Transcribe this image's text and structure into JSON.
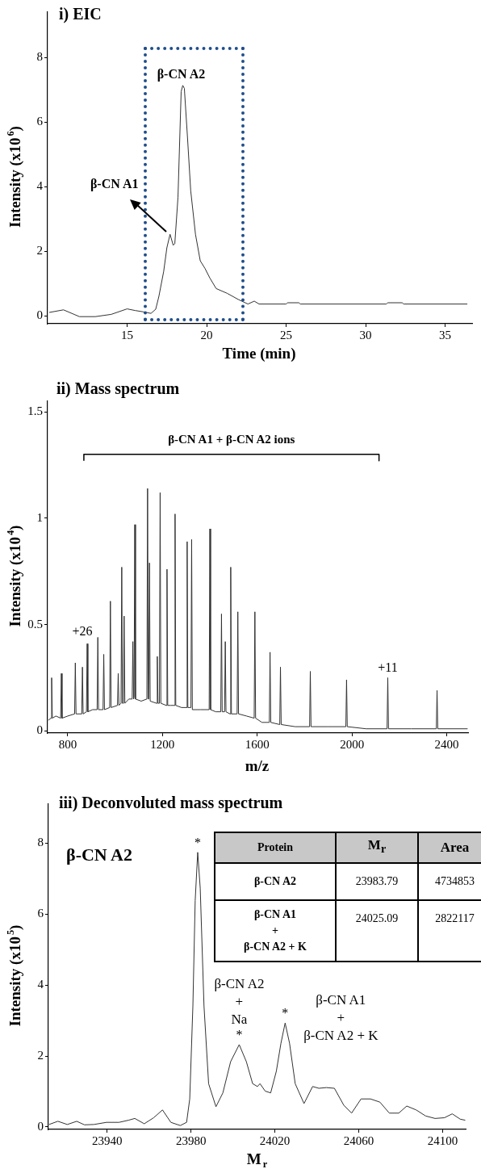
{
  "chart_data": [
    {
      "type": "line",
      "title": "i) EIC",
      "xlabel": "Time (min)",
      "ylabel": "Intensity (x10$^{6}$)",
      "xlim": [
        10,
        36.7
      ],
      "xticks": [
        15,
        20,
        25,
        30,
        35
      ],
      "ylim": [
        -0.25,
        9.4
      ],
      "yticks": [
        0,
        2,
        4,
        6,
        8
      ],
      "series": [
        {
          "color": "#333333",
          "x": [
            10.1,
            11,
            12,
            13,
            14,
            15,
            15.5,
            16,
            16.5,
            16.8,
            17,
            17.3,
            17.5,
            17.7,
            17.9,
            18,
            18.2,
            18.4,
            18.5,
            18.6,
            18.8,
            19,
            19.3,
            19.6,
            19.9,
            20.2,
            20.6,
            21.3,
            22,
            22.6,
            23,
            23.3,
            25,
            25.1,
            25.8,
            25.9,
            31.3,
            31.4,
            32.3,
            32.4,
            36.4
          ],
          "values": [
            0.1,
            0.18,
            -0.03,
            -0.03,
            0.04,
            0.21,
            0.16,
            0.12,
            0.07,
            0.2,
            0.6,
            1.37,
            2.1,
            2.52,
            2.18,
            2.23,
            3.67,
            6.94,
            7.13,
            7.04,
            5.5,
            3.87,
            2.52,
            1.7,
            1.46,
            1.17,
            0.84,
            0.69,
            0.5,
            0.36,
            0.45,
            0.36,
            0.36,
            0.4,
            0.4,
            0.36,
            0.36,
            0.4,
            0.4,
            0.36,
            0.36
          ]
        }
      ],
      "annotations": [
        {
          "text": "β-CN A2",
          "x": 18.5,
          "y": 7.13
        },
        {
          "text": "β-CN A1",
          "x": 17.7,
          "y": 2.52
        }
      ]
    },
    {
      "type": "line",
      "title": "ii) Mass spectrum",
      "xlabel": "m/z",
      "ylabel": "Intensity (x10$^{4}$)",
      "xlim": [
        715,
        2490
      ],
      "xticks": [
        800,
        1200,
        1600,
        2000,
        2400
      ],
      "ylim": [
        -0.01,
        1.55
      ],
      "yticks": [
        0,
        0.5,
        1,
        1.5
      ],
      "series": [
        {
          "color": "#333333",
          "x": [
            718,
            729,
            732,
            735,
            750,
            770,
            773,
            776,
            800,
            829,
            832,
            835,
            859,
            862,
            865,
            879,
            882,
            885,
            905,
            924,
            927,
            930,
            949,
            952,
            955,
            977,
            980,
            983,
            1010,
            1013,
            1016,
            1025,
            1028,
            1031,
            1035,
            1038,
            1041,
            1058,
            1072,
            1075,
            1078,
            1080,
            1083,
            1086,
            1110,
            1134,
            1137,
            1140,
            1142,
            1145,
            1148,
            1175,
            1178,
            1181,
            1187,
            1190,
            1193,
            1216,
            1219,
            1222,
            1235,
            1250,
            1253,
            1256,
            1280,
            1301,
            1304,
            1307,
            1320,
            1323,
            1326,
            1360,
            1397,
            1400,
            1403,
            1425,
            1446,
            1449,
            1452,
            1462,
            1465,
            1468,
            1485,
            1488,
            1491,
            1515,
            1518,
            1521,
            1555,
            1587,
            1590,
            1593,
            1620,
            1651,
            1654,
            1657,
            1695,
            1698,
            1701,
            1760,
            1821,
            1824,
            1827,
            1900,
            1974,
            1977,
            1980,
            2060,
            2148,
            2151,
            2154,
            2250,
            2356,
            2359,
            2362,
            2488
          ],
          "values": [
            0.05,
            0.06,
            0.25,
            0.06,
            0.07,
            0.06,
            0.27,
            0.06,
            0.07,
            0.08,
            0.32,
            0.08,
            0.08,
            0.3,
            0.08,
            0.09,
            0.41,
            0.09,
            0.1,
            0.1,
            0.44,
            0.1,
            0.1,
            0.36,
            0.1,
            0.11,
            0.61,
            0.11,
            0.12,
            0.27,
            0.12,
            0.13,
            0.77,
            0.13,
            0.13,
            0.54,
            0.13,
            0.15,
            0.15,
            0.42,
            0.15,
            0.16,
            0.97,
            0.15,
            0.14,
            0.15,
            1.14,
            0.15,
            0.15,
            0.79,
            0.14,
            0.13,
            0.35,
            0.13,
            0.13,
            1.12,
            0.13,
            0.12,
            0.76,
            0.12,
            0.12,
            0.12,
            1.02,
            0.12,
            0.11,
            0.11,
            0.89,
            0.11,
            0.11,
            0.9,
            0.1,
            0.1,
            0.1,
            0.95,
            0.1,
            0.09,
            0.09,
            0.55,
            0.09,
            0.09,
            0.42,
            0.09,
            0.08,
            0.77,
            0.08,
            0.08,
            0.56,
            0.08,
            0.07,
            0.06,
            0.56,
            0.06,
            0.04,
            0.04,
            0.37,
            0.04,
            0.03,
            0.3,
            0.03,
            0.02,
            0.02,
            0.28,
            0.02,
            0.02,
            0.02,
            0.24,
            0.02,
            0.01,
            0.01,
            0.25,
            0.01,
            0.01,
            0.01,
            0.19,
            0.01,
            0.01
          ]
        },
        {
          "type": "line",
          "color": "#000000",
          "x": [
            868,
            868,
            2114,
            2114
          ],
          "values": [
            1.27,
            1.3,
            1.3,
            1.27
          ]
        }
      ],
      "annotations": [
        {
          "text": "+26",
          "x": 882,
          "y": 0.41
        },
        {
          "text": "+11",
          "x": 2151,
          "y": 0.25
        },
        {
          "text": "β-CN A1 + β-CN A2 ions",
          "x": 1491,
          "y": 1.3
        }
      ]
    },
    {
      "type": "line",
      "title": "iii) Deconvoluted mass spectrum",
      "xlabel": "M$_{r}$",
      "ylabel": "Intensity (x10$^{5}$)",
      "xlim": [
        23912,
        24111
      ],
      "xticks": [
        23940,
        23980,
        24020,
        24060,
        24100
      ],
      "ylim": [
        -0.07,
        9.1
      ],
      "yticks": [
        0,
        2,
        4,
        6,
        8
      ],
      "series": [
        {
          "color": "#333333",
          "x": [
            23912.3,
            23916.5,
            23921,
            23925.5,
            23929.2,
            23933.7,
            23939.7,
            23945.7,
            23950.2,
            23953.2,
            23957.7,
            23962.2,
            23966.4,
            23970.4,
            23974.9,
            23977.9,
            23979.4,
            23980.9,
            23982,
            23983.2,
            23984.4,
            23986.2,
            23988.4,
            23991.9,
            23995.2,
            23998.9,
            24003,
            24006.4,
            24009.4,
            24011.7,
            24012.9,
            24015.4,
            24018,
            24020.7,
            24022.9,
            24024.9,
            24027,
            24029.7,
            24033.9,
            24038,
            24041,
            24044.6,
            24048.4,
            24052.9,
            24056.6,
            24061.1,
            24065.6,
            24070.1,
            24074.6,
            24079.1,
            24082.9,
            24087.4,
            24091.9,
            24096.4,
            24100.9,
            24104.6,
            24108.4,
            24110.8
          ],
          "values": [
            0.07,
            0.16,
            0.07,
            0.16,
            0.06,
            0.07,
            0.13,
            0.13,
            0.19,
            0.24,
            0.09,
            0.26,
            0.48,
            0.13,
            0.04,
            0.13,
            0.79,
            3.41,
            6.38,
            7.74,
            6.73,
            3.41,
            1.22,
            0.57,
            0.96,
            1.84,
            2.32,
            1.84,
            1.22,
            1.14,
            1.22,
            1.01,
            0.96,
            1.57,
            2.36,
            2.93,
            2.36,
            1.22,
            0.66,
            1.14,
            1.09,
            1.11,
            1.09,
            0.61,
            0.39,
            0.79,
            0.79,
            0.7,
            0.39,
            0.39,
            0.59,
            0.48,
            0.31,
            0.24,
            0.26,
            0.37,
            0.22,
            0.19
          ]
        }
      ],
      "annotations": [
        "β-CN A2",
        {
          "text": "*",
          "x": 23983.2,
          "y": 7.74
        },
        {
          "text": "*",
          "x": 24003,
          "y": 2.32
        },
        {
          "text": "*",
          "x": 24024.9,
          "y": 2.93
        },
        {
          "text": "β-CN A2\n+\nNa",
          "x": 24003,
          "y": 2.32
        },
        {
          "text": "β-CN A1\n+\nβ-CN A2 + K",
          "x": 24024.9,
          "y": 2.93
        }
      ]
    },
    {
      "type": "other",
      "annotations": [
        "Protein",
        "M$_{r}$",
        "Area",
        "β-CN A2",
        "23983.79",
        "4734853",
        "β-CN A1\n+\nβ-CN A2 + K",
        "24025.09",
        "2822117"
      ]
    }
  ]
}
